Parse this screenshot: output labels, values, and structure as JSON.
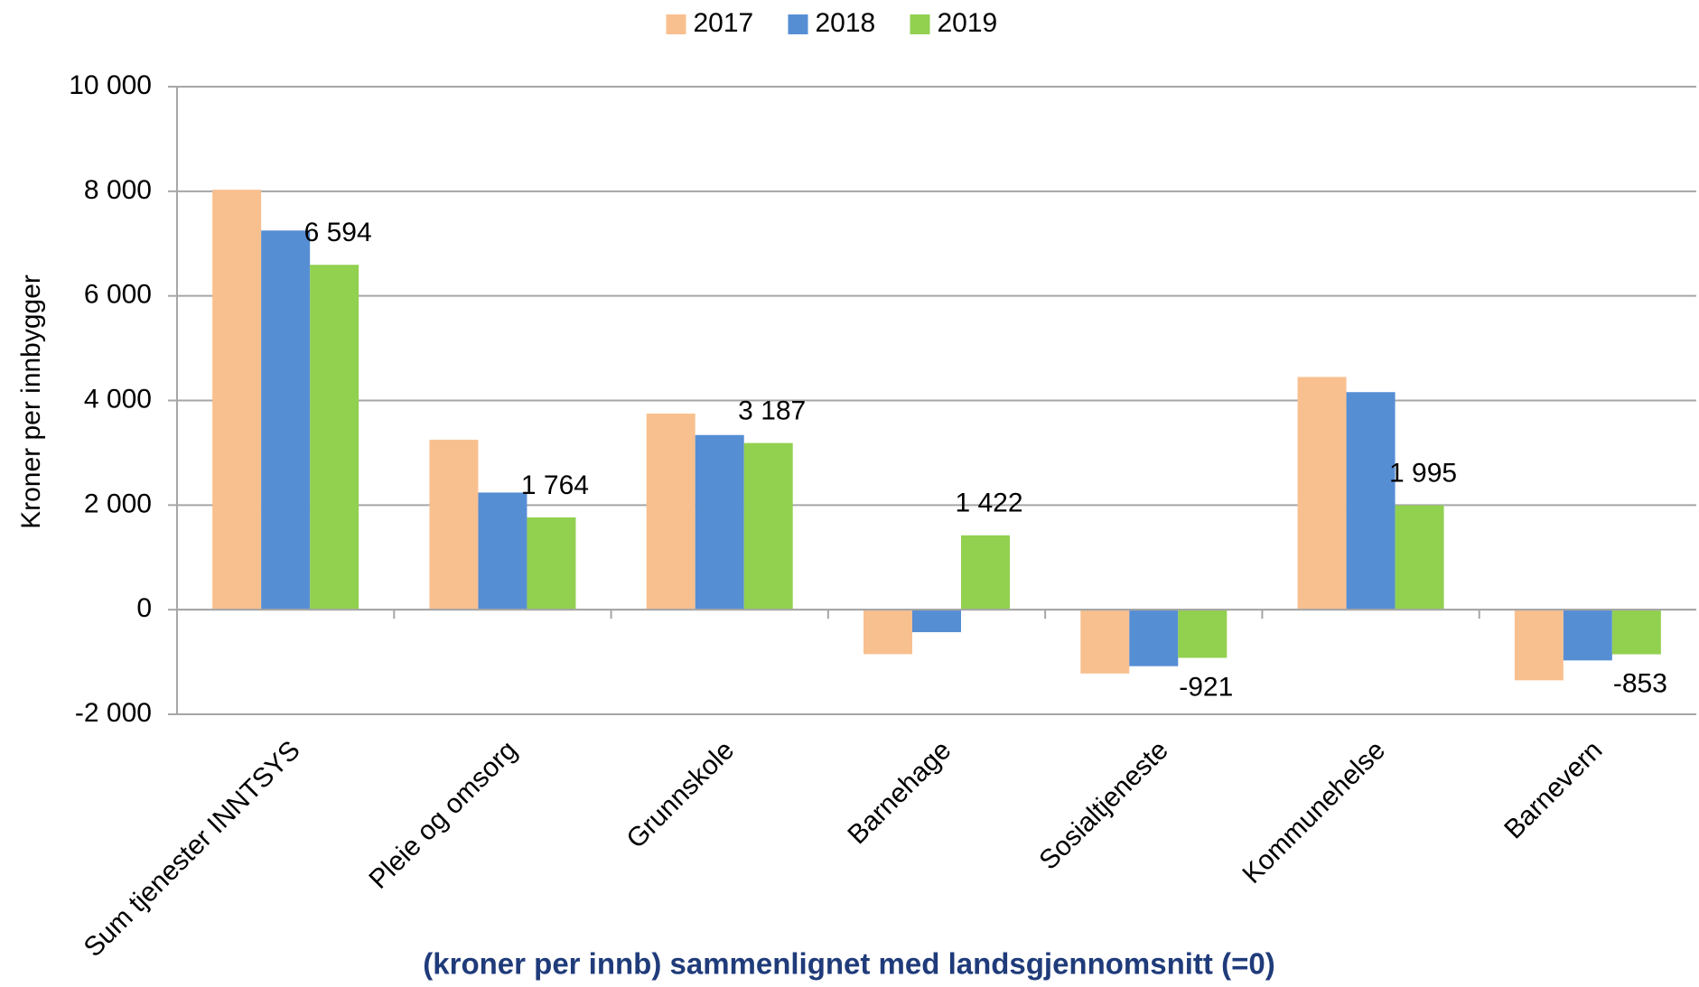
{
  "chart_data": {
    "type": "bar",
    "y_label": "Kroner per innbygger",
    "x_label": "(kroner per innb) sammenlignet med landsgjennomsnitt (=0)",
    "categories": [
      "Sum tjenester INNTSYS",
      "Pleie og omsorg",
      "Grunnskole",
      "Barnehage",
      "Sosialtjeneste",
      "Kommunehelse",
      "Barnevern"
    ],
    "series": [
      {
        "name": "2017",
        "color": "#f9c08f",
        "values": [
          8030,
          3250,
          3750,
          -850,
          -1220,
          4450,
          -1350
        ]
      },
      {
        "name": "2018",
        "color": "#568ed4",
        "values": [
          7250,
          2240,
          3340,
          -430,
          -1080,
          4160,
          -970
        ]
      },
      {
        "name": "2019",
        "color": "#92d050",
        "values": [
          6594,
          1764,
          3187,
          1422,
          -921,
          1995,
          -853
        ],
        "value_labels": [
          "6 594",
          "1 764",
          "3 187",
          "1 422",
          "-921",
          "1 995",
          "-853"
        ]
      }
    ],
    "ylim": [
      -2000,
      10000
    ],
    "yticks": [
      {
        "value": -2000,
        "label": "-2 000"
      },
      0,
      {
        "value": 2000,
        "label": "2 000"
      },
      {
        "value": 4000,
        "label": "4 000"
      },
      {
        "value": 6000,
        "label": "6 000"
      },
      {
        "value": 8000,
        "label": "8 000"
      },
      {
        "value": 10000,
        "label": "10 000"
      }
    ],
    "grid": true,
    "legend": "top"
  }
}
